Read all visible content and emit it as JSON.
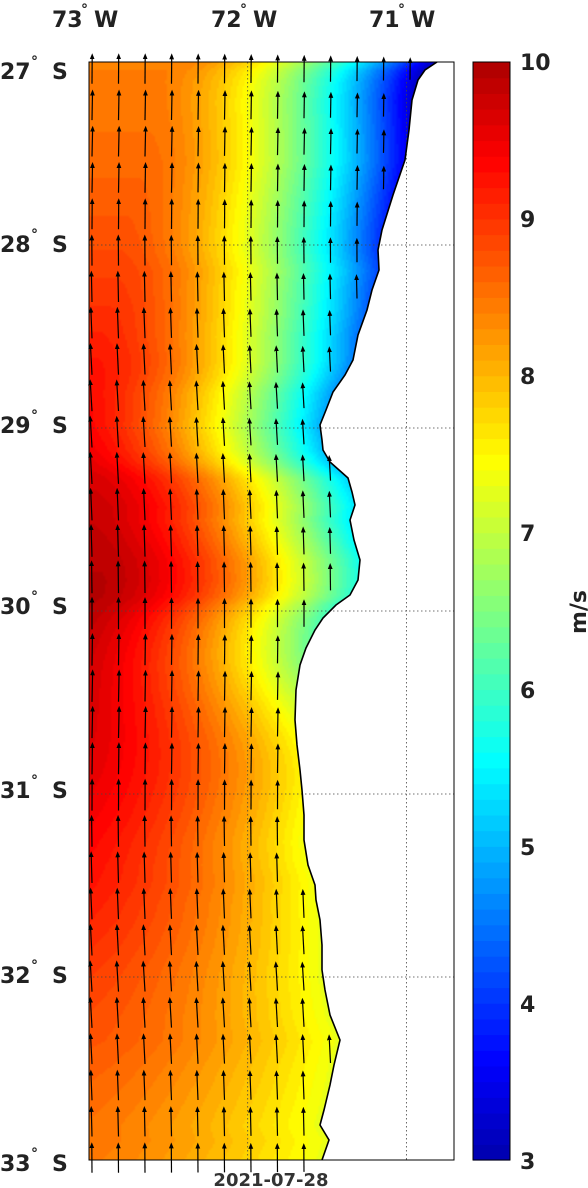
{
  "map": {
    "date": "2021-07-28",
    "lon_ticks": [
      {
        "deg": "73",
        "hemi": "W",
        "value": -73
      },
      {
        "deg": "72",
        "hemi": "W",
        "value": -72
      },
      {
        "deg": "71",
        "hemi": "W",
        "value": -71
      }
    ],
    "lat_ticks": [
      {
        "deg": "27",
        "hemi": "S",
        "value": -27
      },
      {
        "deg": "28",
        "hemi": "S",
        "value": -28
      },
      {
        "deg": "29",
        "hemi": "S",
        "value": -29
      },
      {
        "deg": "30",
        "hemi": "S",
        "value": -30
      },
      {
        "deg": "31",
        "hemi": "S",
        "value": -31
      },
      {
        "deg": "32",
        "hemi": "S",
        "value": -32
      },
      {
        "deg": "33",
        "hemi": "S",
        "value": -33
      }
    ],
    "lon_range": [
      -73.0,
      -70.7
    ],
    "lat_range": [
      -33.0,
      -27.0
    ],
    "field": "wind speed with wind direction arrows (southerly winds, arrows pointing north)",
    "grid": "dotted",
    "land_color": "#ffffff",
    "coast_color": "#000000"
  },
  "colorbar": {
    "unit": "m/s",
    "min": 3,
    "max": 10,
    "ticks": [
      "10",
      "9",
      "8",
      "7",
      "6",
      "5",
      "4",
      "3"
    ],
    "colormap": "jet"
  }
}
